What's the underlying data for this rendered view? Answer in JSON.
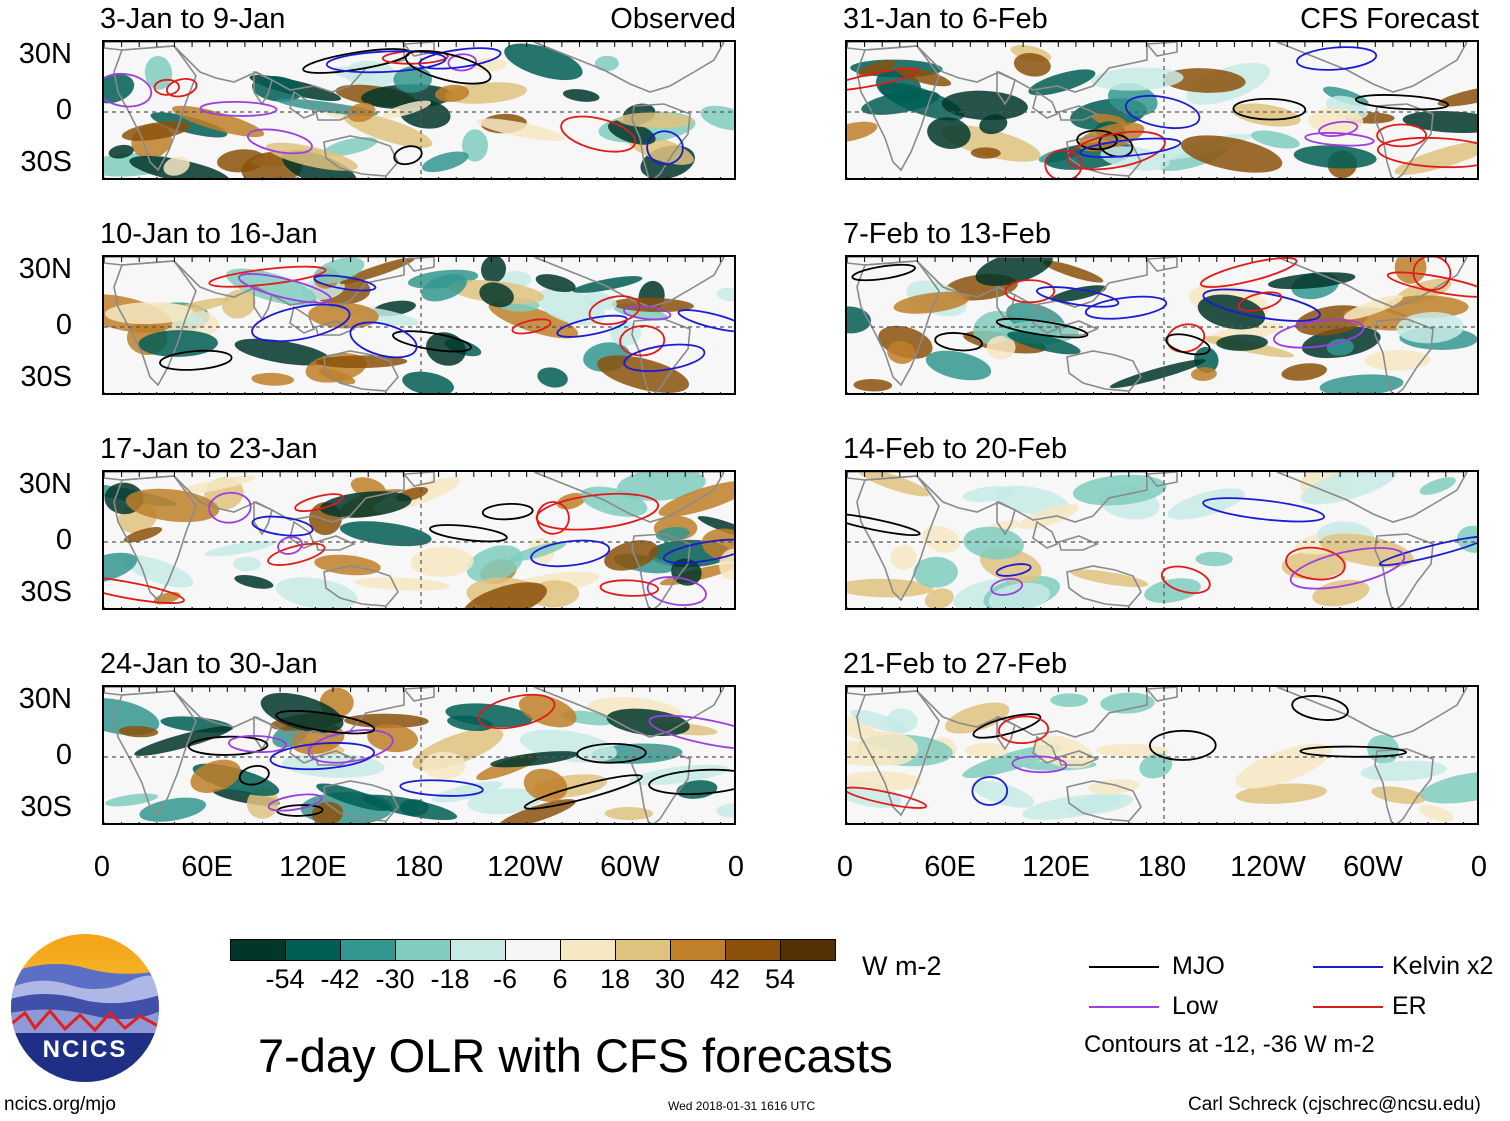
{
  "panels": [
    {
      "id": "p1",
      "title": "3-Jan to 9-Jan",
      "label": "Observed",
      "col": 0,
      "row": 0
    },
    {
      "id": "p2",
      "title": "10-Jan to 16-Jan",
      "label": "",
      "col": 0,
      "row": 1
    },
    {
      "id": "p3",
      "title": "17-Jan to 23-Jan",
      "label": "",
      "col": 0,
      "row": 2
    },
    {
      "id": "p4",
      "title": "24-Jan to 30-Jan",
      "label": "",
      "col": 0,
      "row": 3
    },
    {
      "id": "p5",
      "title": "31-Jan to 6-Feb",
      "label": "CFS Forecast",
      "col": 1,
      "row": 0
    },
    {
      "id": "p6",
      "title": "7-Feb to 13-Feb",
      "label": "",
      "col": 1,
      "row": 1
    },
    {
      "id": "p7",
      "title": "14-Feb to 20-Feb",
      "label": "",
      "col": 1,
      "row": 2
    },
    {
      "id": "p8",
      "title": "21-Feb to 27-Feb",
      "label": "",
      "col": 1,
      "row": 3
    }
  ],
  "axes": {
    "y_labels": [
      "30N",
      "0",
      "30S"
    ],
    "x_labels": [
      "0",
      "60E",
      "120E",
      "180",
      "120W",
      "60W",
      "0"
    ]
  },
  "colorbar": {
    "colors": [
      "#01362a",
      "#015e55",
      "#34978f",
      "#80cdc0",
      "#c7eae5",
      "#f5f5f5",
      "#f6e8c3",
      "#dfc27e",
      "#c07f29",
      "#8b510a",
      "#543006"
    ],
    "labels": [
      "-54",
      "-42",
      "-30",
      "-18",
      "-6",
      "6",
      "18",
      "30",
      "42",
      "54"
    ],
    "units": "W m-2"
  },
  "legend": {
    "items": [
      {
        "label": "MJO",
        "color": "#000000"
      },
      {
        "label": "Kelvin x2",
        "color": "#1b1bd6"
      },
      {
        "label": "Low",
        "color": "#9b3fe0"
      },
      {
        "label": "ER",
        "color": "#e01b1b"
      }
    ],
    "note": "Contours at -12, -36 W m-2"
  },
  "logo": {
    "text": "NCICS"
  },
  "main_title": "7-day OLR with CFS forecasts",
  "footer": {
    "url": "ncics.org/mjo",
    "timestamp": "Wed 2018-01-31 1616 UTC",
    "credit": "Carl Schreck (cjschrec@ncsu.edu)"
  }
}
